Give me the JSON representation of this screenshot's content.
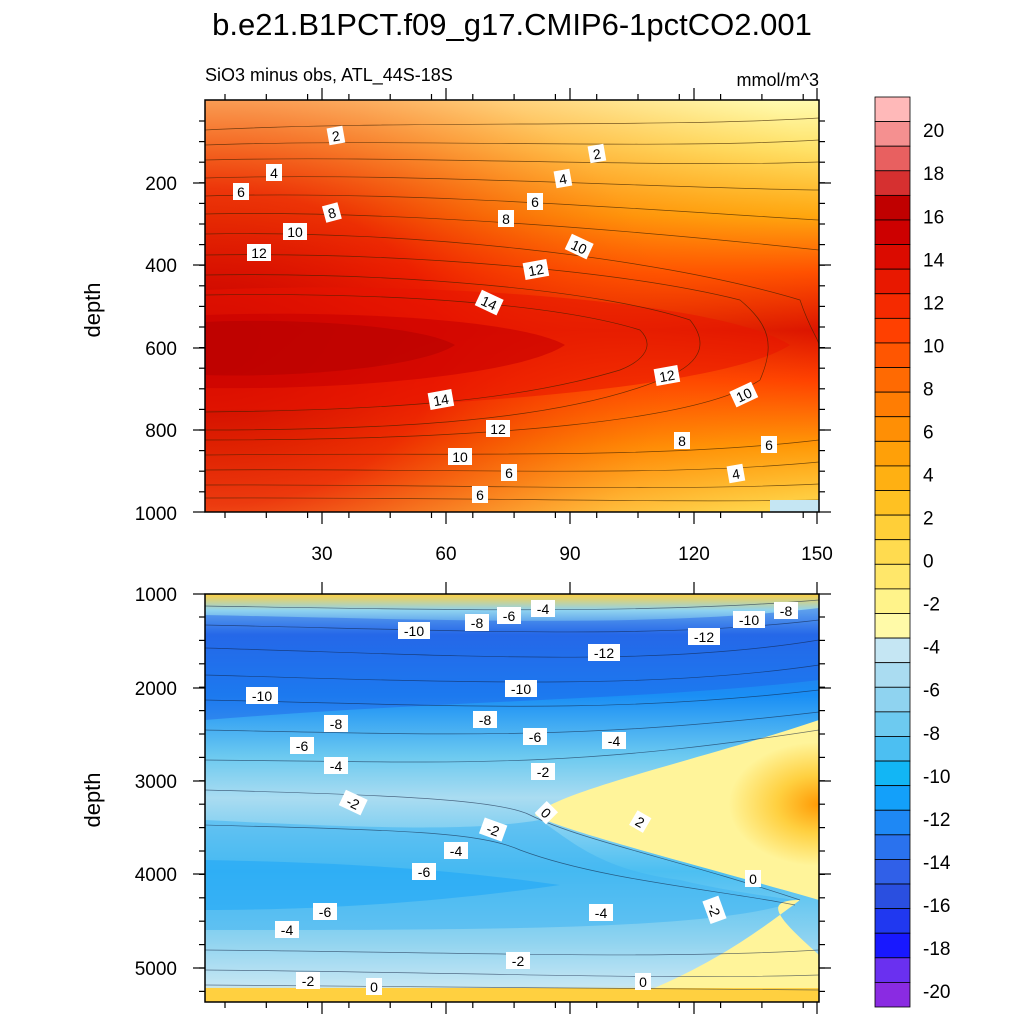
{
  "title": "b.e21.B1PCT.f09_g17.CMIP6-1pctCO2.001",
  "colors": {
    "levels": [
      -20,
      -18,
      -16,
      -14,
      -12,
      -10,
      -8,
      -6,
      -4,
      -2,
      0,
      2,
      4,
      6,
      8,
      10,
      12,
      14,
      16,
      18,
      20
    ],
    "fills": [
      "#8a2be2",
      "#6a30f0",
      "#1818ff",
      "#2038f0",
      "#2a4fe0",
      "#3060e8",
      "#2a72ee",
      "#1e88f5",
      "#13a0fa",
      "#12b6f5",
      "#4cbff2",
      "#6dcaf0",
      "#8fd3f0",
      "#aadcf1",
      "#c5e6f3",
      "#fffaa8",
      "#fff38a",
      "#ffe76a",
      "#ffdb4f",
      "#ffcf38",
      "#ffc122",
      "#ffb012",
      "#ffa008",
      "#ff8f05",
      "#ff7d03",
      "#ff6a02",
      "#ff5601",
      "#ff4000",
      "#f52a00",
      "#e81800",
      "#db0b00",
      "#cd0000",
      "#c00000",
      "#d63030",
      "#e86060",
      "#f59090",
      "#ffb9b9"
    ]
  },
  "chart_data": [
    {
      "type": "heatmap",
      "subtitle_left": "SiO3 minus obs, ATL_44S-18S",
      "subtitle_right": "mmol/m^3",
      "ylabel": "depth",
      "xlabel": "",
      "ylim": [
        0,
        1000
      ],
      "xlim": [
        0,
        152
      ],
      "xticks": [
        "30",
        "60",
        "90",
        "120",
        "150"
      ],
      "yticks": [
        "200",
        "400",
        "600",
        "800",
        "1000"
      ],
      "contour_labels": [
        "2",
        "2",
        "4",
        "4",
        "6",
        "6",
        "8",
        "8",
        "10",
        "10",
        "12",
        "12",
        "14",
        "14",
        "12",
        "10",
        "12",
        "10",
        "8",
        "6",
        "8",
        "6",
        "4",
        "6"
      ]
    },
    {
      "type": "heatmap",
      "subtitle_left": "",
      "subtitle_right": "",
      "ylabel": "depth",
      "xlabel": "",
      "ylim": [
        1000,
        5350
      ],
      "xlim": [
        0,
        152
      ],
      "xticks": [],
      "yticks": [
        "1000",
        "2000",
        "3000",
        "4000",
        "5000"
      ],
      "contour_labels": [
        "-4",
        "-6",
        "-8",
        "-10",
        "-10",
        "-12",
        "-12",
        "-10",
        "-8",
        "-10",
        "-10",
        "-8",
        "-8",
        "-6",
        "-4",
        "-6",
        "-4",
        "-2",
        "-2",
        "0",
        "2",
        "-2",
        "-4",
        "-6",
        "0",
        "-6",
        "-4",
        "-2",
        "-4",
        "-2",
        "-2",
        "0",
        "0"
      ]
    }
  ],
  "colorbar": {
    "ticks": [
      "20",
      "18",
      "16",
      "14",
      "12",
      "10",
      "8",
      "6",
      "4",
      "2",
      "0",
      "-2",
      "-4",
      "-6",
      "-8",
      "-10",
      "-12",
      "-14",
      "-16",
      "-18",
      "-20"
    ]
  }
}
